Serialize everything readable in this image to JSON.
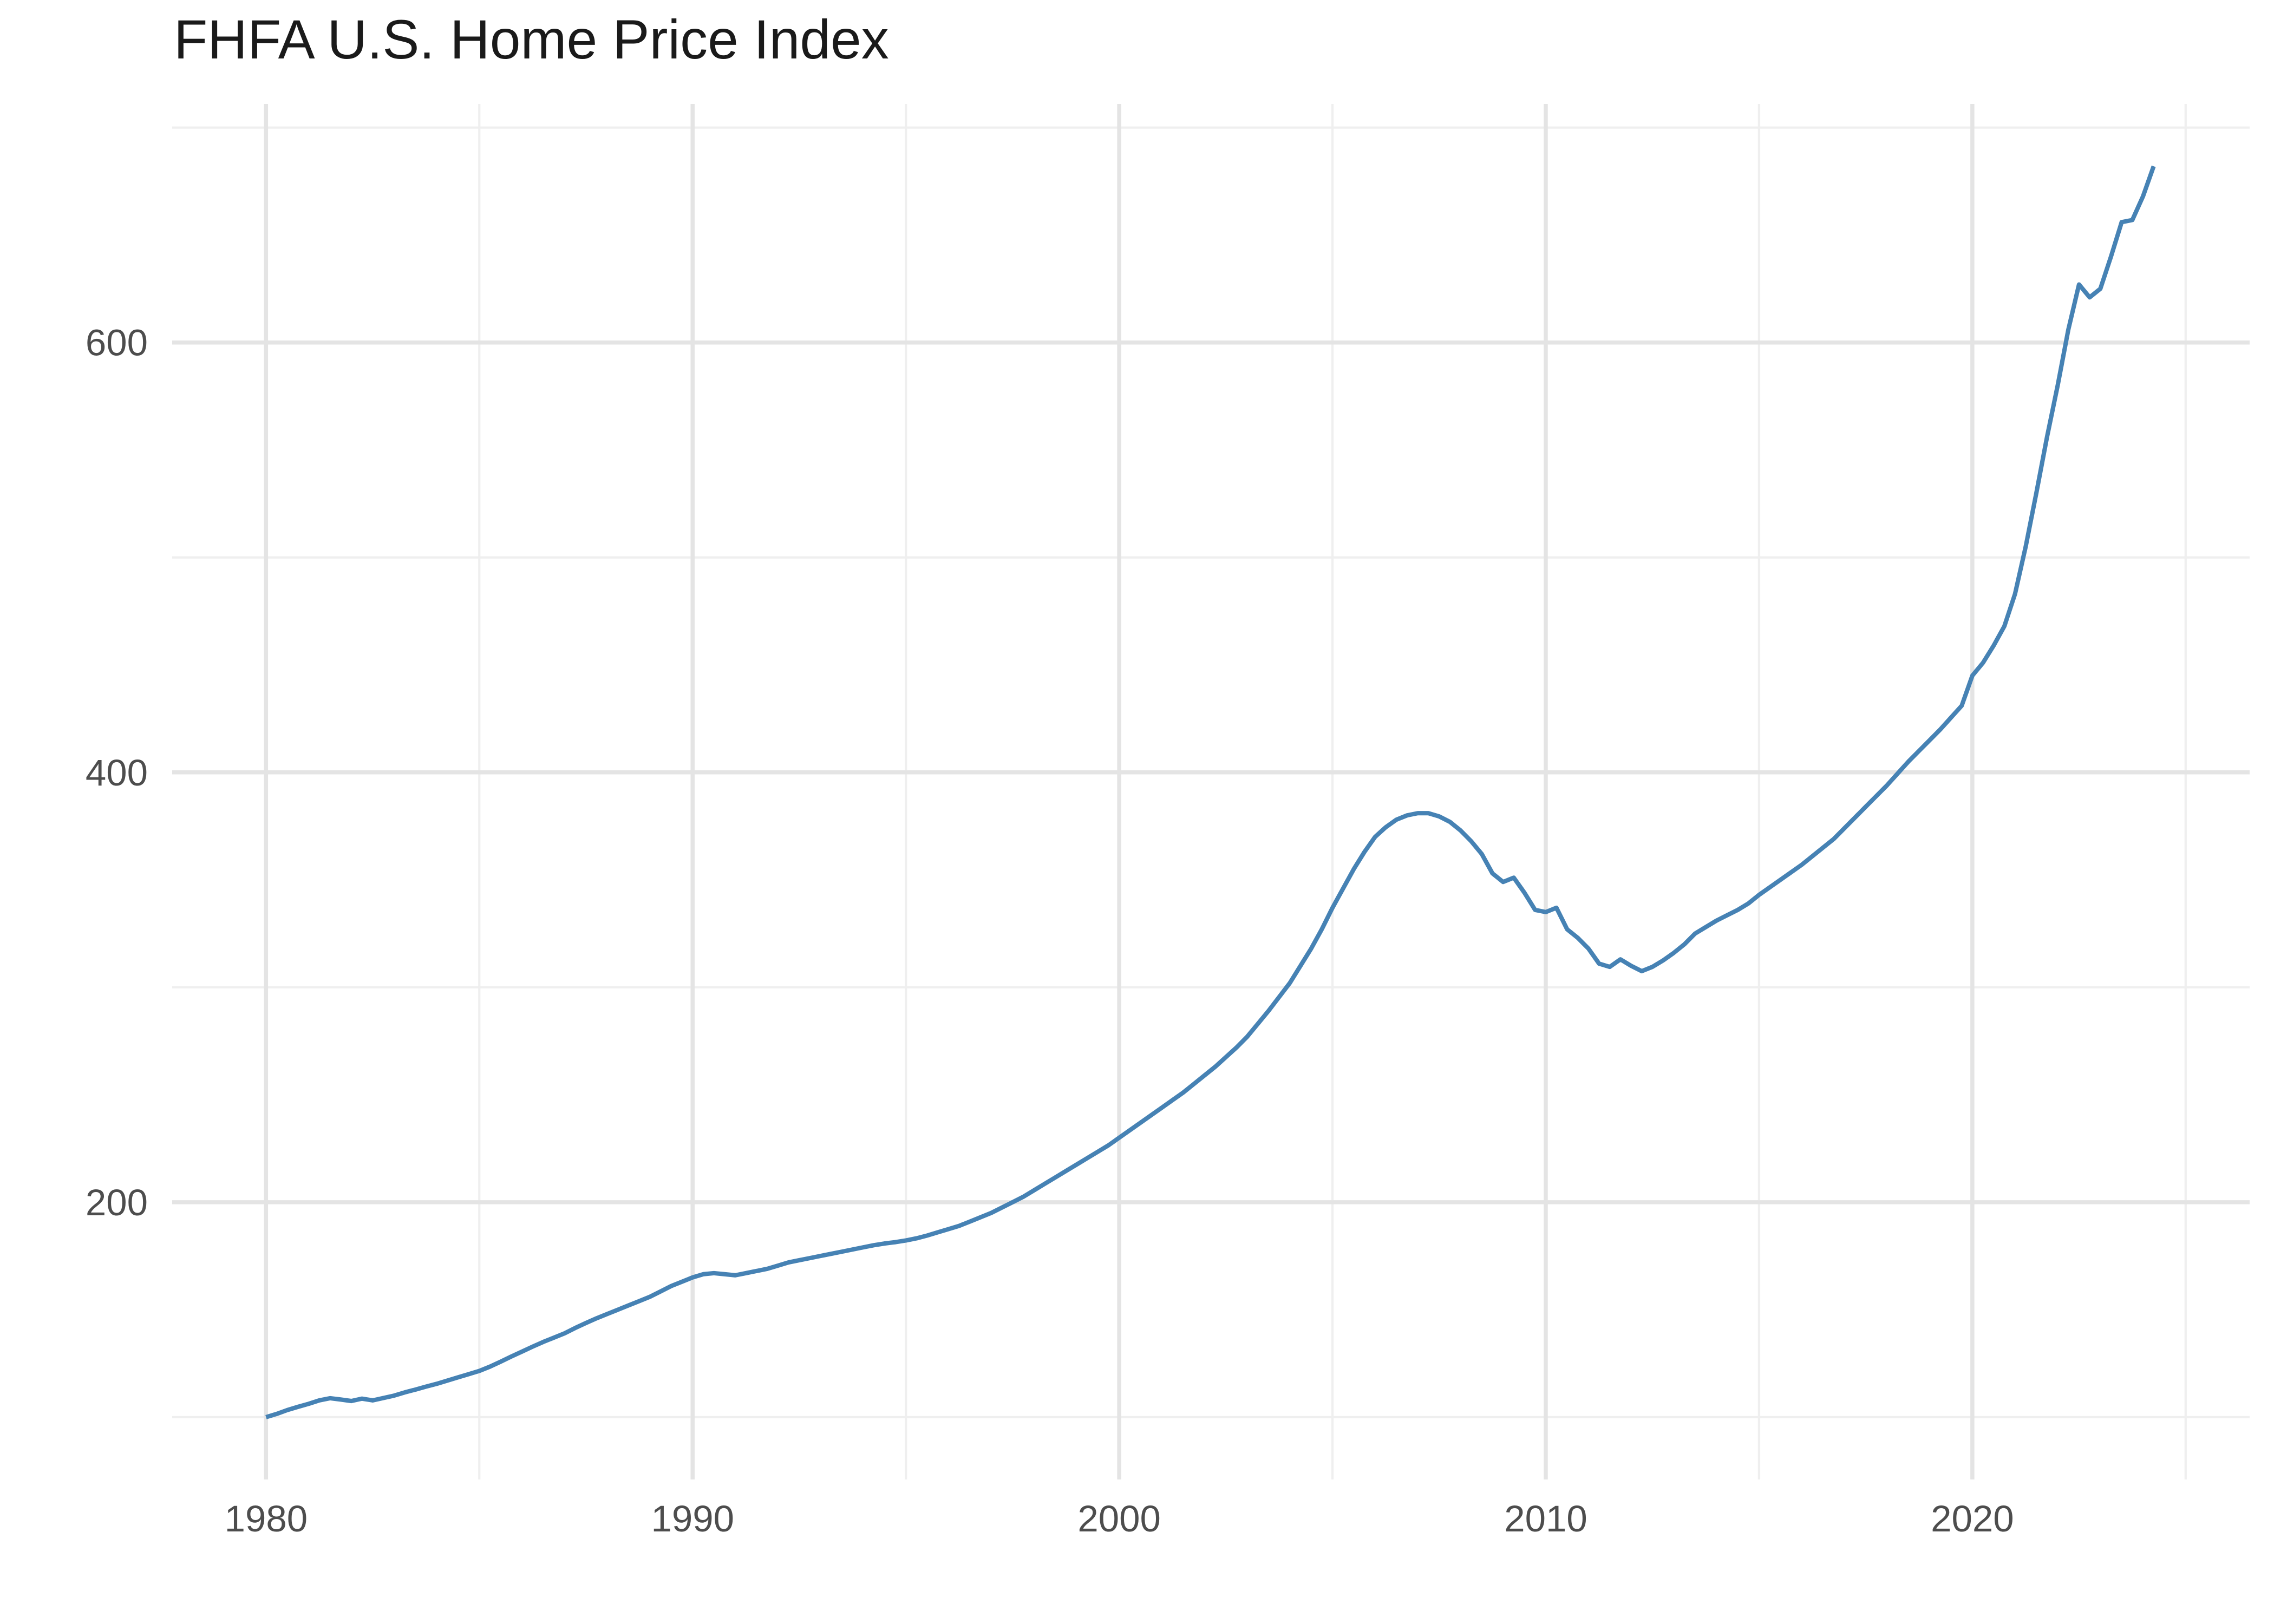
{
  "title": "FHFA U.S. Home Price Index",
  "colors": {
    "line": "#4682B4",
    "grid_major": "#E4E4E4",
    "grid_minor": "#EFEFEF",
    "axis_text": "#4D4D4D",
    "title_text": "#1A1A1A",
    "background": "#FFFFFF"
  },
  "chart_data": {
    "type": "line",
    "title": "FHFA U.S. Home Price Index",
    "xlabel": "",
    "ylabel": "",
    "grid": true,
    "legend_position": "none",
    "x_start_year": 1980,
    "points_per_year": 4,
    "x_range": [
      1977.8,
      2026.5
    ],
    "y_range": [
      71,
      711
    ],
    "x_tick_values": [
      1980,
      1990,
      2000,
      2010,
      2020
    ],
    "x_tick_labels": [
      "1980",
      "1990",
      "2000",
      "2010",
      "2020"
    ],
    "x_minor_tick_values": [
      1985,
      1995,
      2005,
      2015,
      2025
    ],
    "y_tick_values": [
      200,
      400,
      600
    ],
    "y_tick_labels": [
      "200",
      "400",
      "600"
    ],
    "y_minor_tick_values": [
      100,
      300,
      500,
      700
    ],
    "values": [
      100,
      101.5,
      103.3,
      104.8,
      106.2,
      107.8,
      108.8,
      108.2,
      107.5,
      108.6,
      107.8,
      108.9,
      110,
      111.5,
      112.8,
      114.2,
      115.5,
      117,
      118.5,
      120,
      121.5,
      123.5,
      125.8,
      128.2,
      130.5,
      132.8,
      135,
      137,
      139,
      141.5,
      143.8,
      146,
      148,
      150,
      152,
      154,
      156,
      158.5,
      161,
      163,
      165,
      166.5,
      167,
      166.5,
      166,
      167,
      168,
      169,
      170.5,
      172,
      173,
      174,
      175,
      176,
      177,
      178,
      179,
      180,
      180.8,
      181.4,
      182.2,
      183.2,
      184.5,
      186,
      187.5,
      189,
      191,
      193,
      195,
      197.5,
      200,
      202.5,
      205.5,
      208.5,
      211.5,
      214.5,
      217.5,
      220.5,
      223.5,
      226.5,
      230,
      233.5,
      237,
      240.5,
      244,
      247.5,
      251,
      255,
      259,
      263,
      267.5,
      272,
      277,
      283,
      289,
      295.5,
      302,
      310,
      318,
      327,
      337,
      346,
      355,
      363,
      370,
      374.5,
      378,
      380,
      381,
      381,
      379.5,
      377,
      373,
      368,
      362,
      353,
      349,
      351,
      344,
      336,
      335,
      337,
      327,
      323,
      318,
      311,
      309.5,
      313,
      310,
      307.5,
      309.5,
      312.5,
      316,
      320,
      325,
      328,
      331,
      333.5,
      336,
      339,
      343,
      346.5,
      350,
      353.5,
      357,
      361,
      365,
      369,
      374,
      379,
      384,
      389,
      394,
      399.5,
      405,
      410,
      415,
      420,
      425.5,
      431,
      445,
      451,
      459,
      468,
      483,
      505,
      530,
      556,
      580,
      606,
      627,
      621,
      625,
      640,
      656,
      657,
      668,
      682
    ]
  }
}
